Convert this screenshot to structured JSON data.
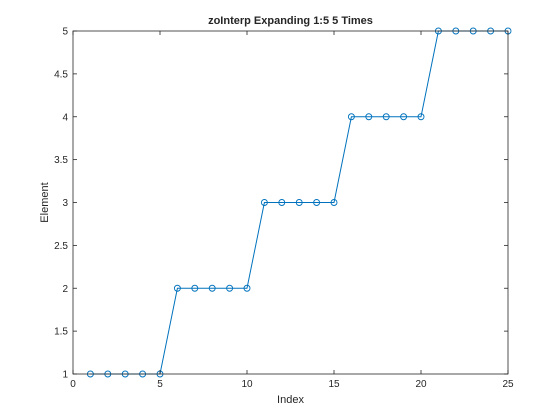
{
  "chart_data": {
    "type": "line",
    "title": "zoInterp Expanding 1:5 5 Times",
    "xlabel": "Index",
    "ylabel": "Element",
    "xlim": [
      0,
      25
    ],
    "ylim": [
      1,
      5
    ],
    "xticks": [
      0,
      5,
      10,
      15,
      20,
      25
    ],
    "xtick_labels": [
      "0",
      "5",
      "10",
      "15",
      "20",
      "25"
    ],
    "yticks": [
      1,
      1.5,
      2,
      2.5,
      3,
      3.5,
      4,
      4.5,
      5
    ],
    "ytick_labels": [
      "1",
      "1.5",
      "2",
      "2.5",
      "3",
      "3.5",
      "4",
      "4.5",
      "5"
    ],
    "grid": false,
    "marker": "circle",
    "line_color": "#0072BD",
    "series": [
      {
        "x": [
          1,
          2,
          3,
          4,
          5,
          6,
          7,
          8,
          9,
          10,
          11,
          12,
          13,
          14,
          15,
          16,
          17,
          18,
          19,
          20,
          21,
          22,
          23,
          24,
          25
        ],
        "y": [
          1,
          1,
          1,
          1,
          1,
          2,
          2,
          2,
          2,
          2,
          3,
          3,
          3,
          3,
          3,
          4,
          4,
          4,
          4,
          4,
          5,
          5,
          5,
          5,
          5
        ]
      }
    ]
  }
}
